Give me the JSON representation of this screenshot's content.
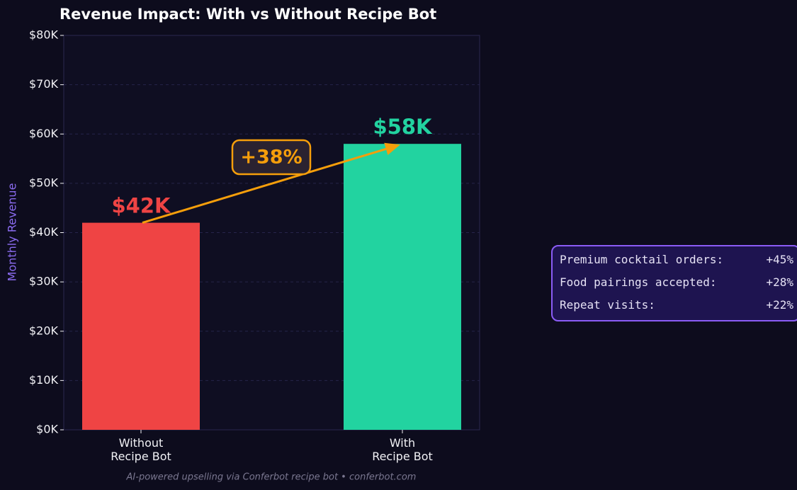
{
  "chart_data": {
    "type": "bar",
    "title": "Revenue Impact: With vs Without Recipe Bot",
    "y_label": "Monthly Revenue",
    "categories": [
      "Without\nRecipe Bot",
      "With\nRecipe Bot"
    ],
    "values": [
      42000,
      58000
    ],
    "value_labels": [
      "$42K",
      "$58K"
    ],
    "colors": [
      "#ef4444",
      "#22d3a0"
    ],
    "ylim": [
      0,
      80000
    ],
    "yticks": [
      {
        "value": 0,
        "label": "$0K"
      },
      {
        "value": 10000,
        "label": "$10K"
      },
      {
        "value": 20000,
        "label": "$20K"
      },
      {
        "value": 30000,
        "label": "$30K"
      },
      {
        "value": 40000,
        "label": "$40K"
      },
      {
        "value": 50000,
        "label": "$50K"
      },
      {
        "value": 60000,
        "label": "$60K"
      },
      {
        "value": 70000,
        "label": "$70K"
      },
      {
        "value": 80000,
        "label": "$80K"
      }
    ],
    "grid": true,
    "annotation": "+38%",
    "callout_rows": [
      {
        "label": "Premium cocktail orders:",
        "value": "+45%"
      },
      {
        "label": "Food pairings accepted:",
        "value": "+28%"
      },
      {
        "label": "Repeat visits:",
        "value": "+22%"
      }
    ],
    "footer": "AI-powered upselling via Conferbot recipe bot  •  conferbot.com"
  }
}
